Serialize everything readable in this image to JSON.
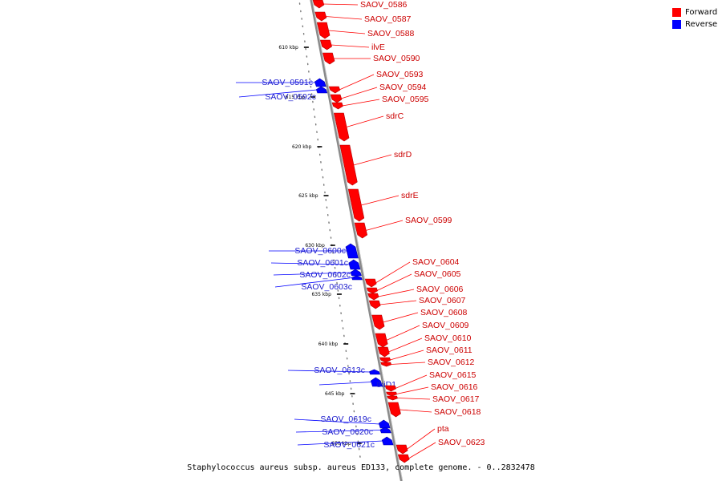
{
  "caption": "Staphylococcus aureus subsp. aureus ED133, complete genome. - 0..2832478",
  "legend": [
    {
      "label": "Forward",
      "color": "#ff0000"
    },
    {
      "label": "Reverse",
      "color": "#0000ff"
    }
  ],
  "colors": {
    "forward": "#ff0000",
    "reverse": "#0000ff",
    "forward_label": "#cc0000",
    "reverse_label": "#1a1acc",
    "axis": "#8a8a8a"
  },
  "ruler": [
    {
      "label": "610 kbp"
    },
    {
      "label": "615 kbp"
    },
    {
      "label": "620 kbp"
    },
    {
      "label": "625 kbp"
    },
    {
      "label": "630 kbp"
    },
    {
      "label": "635 kbp"
    },
    {
      "label": "640 kbp"
    },
    {
      "label": "645 kbp"
    },
    {
      "label": "650 kbp"
    }
  ],
  "genes": [
    {
      "name": "SAOV_0586",
      "strand": "forward"
    },
    {
      "name": "SAOV_0587",
      "strand": "forward"
    },
    {
      "name": "SAOV_0588",
      "strand": "forward"
    },
    {
      "name": "ilvE",
      "strand": "forward"
    },
    {
      "name": "SAOV_0590",
      "strand": "forward"
    },
    {
      "name": "SAOV_0591c",
      "strand": "reverse"
    },
    {
      "name": "SAOV_0592c",
      "strand": "reverse"
    },
    {
      "name": "SAOV_0593",
      "strand": "forward"
    },
    {
      "name": "SAOV_0594",
      "strand": "forward"
    },
    {
      "name": "SAOV_0595",
      "strand": "forward"
    },
    {
      "name": "sdrC",
      "strand": "forward"
    },
    {
      "name": "sdrD",
      "strand": "forward"
    },
    {
      "name": "sdrE",
      "strand": "forward"
    },
    {
      "name": "SAOV_0599",
      "strand": "forward"
    },
    {
      "name": "SAOV_0600c",
      "strand": "reverse"
    },
    {
      "name": "SAOV_0601c",
      "strand": "reverse"
    },
    {
      "name": "SAOV_0602c",
      "strand": "reverse"
    },
    {
      "name": "SAOV_0603c",
      "strand": "reverse"
    },
    {
      "name": "SAOV_0604",
      "strand": "forward"
    },
    {
      "name": "SAOV_0605",
      "strand": "forward"
    },
    {
      "name": "SAOV_0606",
      "strand": "forward"
    },
    {
      "name": "SAOV_0607",
      "strand": "forward"
    },
    {
      "name": "SAOV_0608",
      "strand": "forward"
    },
    {
      "name": "SAOV_0609",
      "strand": "forward"
    },
    {
      "name": "SAOV_0610",
      "strand": "forward"
    },
    {
      "name": "SAOV_0611",
      "strand": "forward"
    },
    {
      "name": "SAOV_0612",
      "strand": "forward"
    },
    {
      "name": "SAOV_0613c",
      "strand": "reverse"
    },
    {
      "name": "thiD1",
      "strand": "reverse"
    },
    {
      "name": "SAOV_0615",
      "strand": "forward"
    },
    {
      "name": "SAOV_0616",
      "strand": "forward"
    },
    {
      "name": "SAOV_0617",
      "strand": "forward"
    },
    {
      "name": "SAOV_0618",
      "strand": "forward"
    },
    {
      "name": "SAOV_0619c",
      "strand": "reverse"
    },
    {
      "name": "SAOV_0620c",
      "strand": "reverse"
    },
    {
      "name": "SAOV_0621c",
      "strand": "reverse"
    },
    {
      "name": "pta",
      "strand": "forward"
    },
    {
      "name": "SAOV_0623",
      "strand": "forward"
    }
  ]
}
